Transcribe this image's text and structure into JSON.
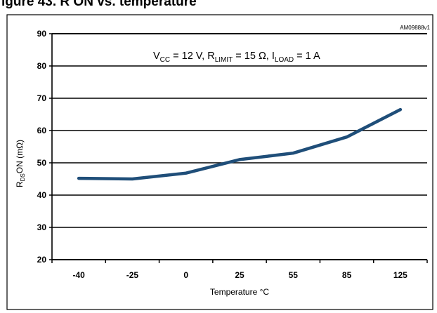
{
  "header": {
    "banner_visible": "igure 43. R   ON vs. temperature"
  },
  "chart_data": {
    "type": "line",
    "figure_code": "AM09888v1",
    "annotation": {
      "vcc_sym": "V",
      "vcc_sub": "CC",
      "vcc_val": " = 12 V, ",
      "rlim_sym": "R",
      "rlim_sub": "LIMIT",
      "rlim_val": " = 15 Ω, ",
      "iload_sym": "I",
      "iload_sub": "LOAD",
      "iload_val": " = 1 A"
    },
    "xlabel": "Temperature °C",
    "ylabel": {
      "pre": "R",
      "sub": "DS",
      "post": "ON (mΩ)"
    },
    "categories": [
      "-40",
      "-25",
      "0",
      "25",
      "55",
      "85",
      "125"
    ],
    "yticks": [
      "20",
      "30",
      "40",
      "50",
      "60",
      "70",
      "80",
      "90"
    ],
    "ylim": [
      20,
      90
    ],
    "grid": true,
    "series": [
      {
        "values": [
          45.2,
          45.0,
          46.8,
          51.0,
          53.0,
          58.0,
          66.5
        ]
      }
    ],
    "colors": {
      "line": "#1f4e79",
      "grid": "#000000"
    }
  }
}
